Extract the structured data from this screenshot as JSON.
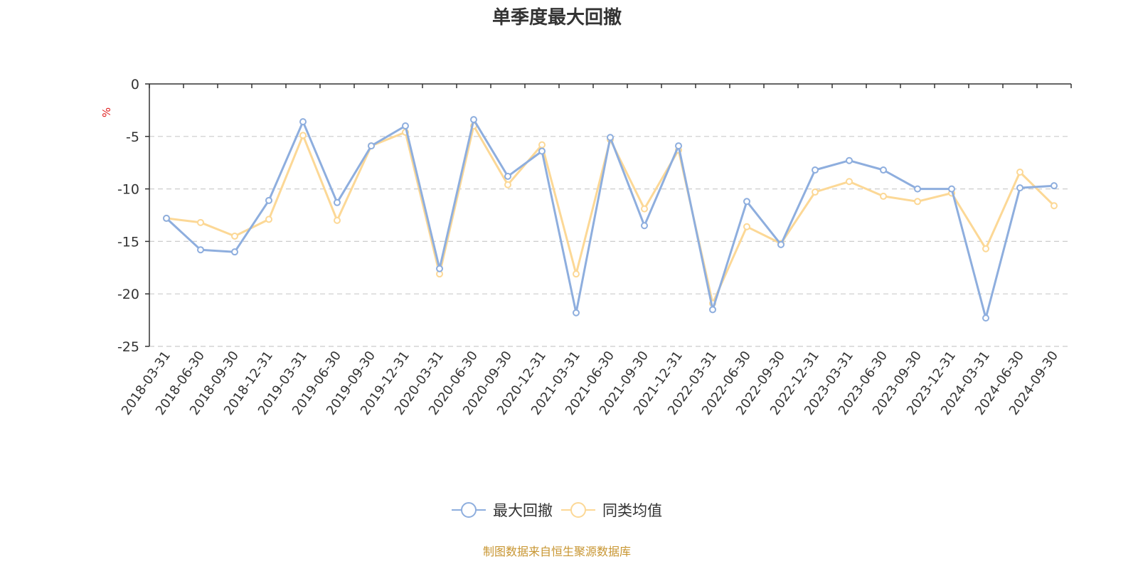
{
  "chart_data": {
    "type": "line",
    "title": "单季度最大回撤",
    "ylabel": "%",
    "ylim": [
      -25,
      0
    ],
    "yticks": [
      0,
      -5,
      -10,
      -15,
      -20,
      -25
    ],
    "grid": true,
    "legend_position": "bottom-center",
    "categories": [
      "2018-03-31",
      "2018-06-30",
      "2018-09-30",
      "2018-12-31",
      "2019-03-31",
      "2019-06-30",
      "2019-09-30",
      "2019-12-31",
      "2020-03-31",
      "2020-06-30",
      "2020-09-30",
      "2020-12-31",
      "2021-03-31",
      "2021-06-30",
      "2021-09-30",
      "2021-12-31",
      "2022-03-31",
      "2022-06-30",
      "2022-09-30",
      "2022-12-31",
      "2023-03-31",
      "2023-06-30",
      "2023-09-30",
      "2023-12-31",
      "2024-03-31",
      "2024-06-30",
      "2024-09-30"
    ],
    "series": [
      {
        "name": "最大回撤",
        "color": "#8eaede",
        "values": [
          -12.8,
          -15.8,
          -16.0,
          -11.1,
          -3.6,
          -11.3,
          -5.9,
          -4.0,
          -17.6,
          -3.4,
          -8.8,
          -6.4,
          -21.8,
          -5.1,
          -13.5,
          -5.9,
          -21.5,
          -11.2,
          -15.3,
          -8.2,
          -7.3,
          -8.2,
          -10.0,
          -10.0,
          -22.3,
          -9.9,
          -9.7
        ]
      },
      {
        "name": "同类均值",
        "color": "#fcd896",
        "values": [
          -12.8,
          -13.2,
          -14.5,
          -12.9,
          -4.9,
          -13.0,
          -5.9,
          -4.6,
          -18.1,
          -4.0,
          -9.6,
          -5.8,
          -18.1,
          -5.3,
          -11.9,
          -6.3,
          -20.9,
          -13.6,
          -15.2,
          -10.3,
          -9.3,
          -10.7,
          -11.2,
          -10.4,
          -15.7,
          -8.4,
          -11.6
        ]
      }
    ]
  },
  "source_note": "制图数据来自恒生聚源数据库"
}
